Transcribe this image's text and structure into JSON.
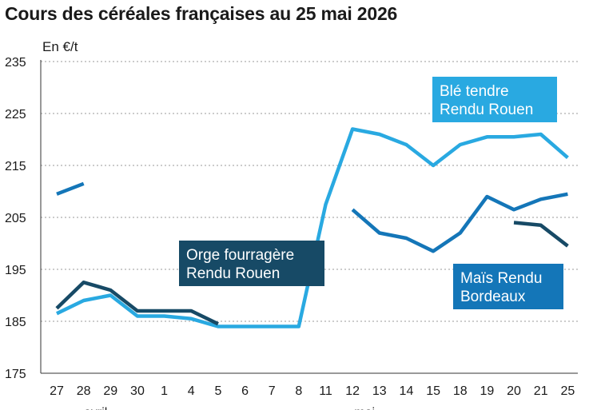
{
  "chart_data": {
    "type": "line",
    "title": "Cours des céréales françaises au 25 mai 2026",
    "ylabel": "En €/t",
    "ylim": [
      175,
      235
    ],
    "yticks": [
      175,
      185,
      195,
      205,
      215,
      225,
      235
    ],
    "grid": "horizontal-dashed",
    "categories": [
      "27",
      "28",
      "29",
      "30",
      "1",
      "4",
      "5",
      "6",
      "7",
      "8",
      "11",
      "12",
      "13",
      "14",
      "15",
      "18",
      "19",
      "20",
      "21",
      "25"
    ],
    "month_labels": [
      {
        "label": "avril",
        "category": "28"
      },
      {
        "label": "mai",
        "category": "12"
      }
    ],
    "series": [
      {
        "name": "Blé tendre Rendu Rouen",
        "color": "#29a9e1",
        "values": [
          186.5,
          189,
          190,
          186,
          186,
          185.5,
          184,
          184,
          184,
          184,
          207.5,
          222,
          221,
          219,
          215,
          219,
          220.5,
          220.5,
          221,
          216.5
        ]
      },
      {
        "name": "Maïs Rendu Bordeaux",
        "color": "#1476b8",
        "values": [
          209.5,
          211.5,
          null,
          null,
          null,
          null,
          null,
          null,
          null,
          null,
          null,
          206.5,
          202,
          201,
          198.5,
          202,
          209,
          206.5,
          208.5,
          209.5
        ]
      },
      {
        "name": "Orge fourragère Rendu Rouen",
        "color": "#174a66",
        "values": [
          187.5,
          192.5,
          191,
          187,
          187,
          187,
          184.5,
          null,
          null,
          null,
          null,
          null,
          null,
          null,
          null,
          null,
          null,
          204,
          203.5,
          199.5
        ]
      }
    ],
    "labels": [
      {
        "lines": [
          "Blé tendre",
          "Rendu Rouen"
        ],
        "color": "#29a9e1"
      },
      {
        "lines": [
          "Orge fourragère",
          "Rendu Rouen"
        ],
        "color": "#174a66"
      },
      {
        "lines": [
          "Maïs Rendu",
          "Bordeaux"
        ],
        "color": "#1476b8"
      }
    ]
  }
}
